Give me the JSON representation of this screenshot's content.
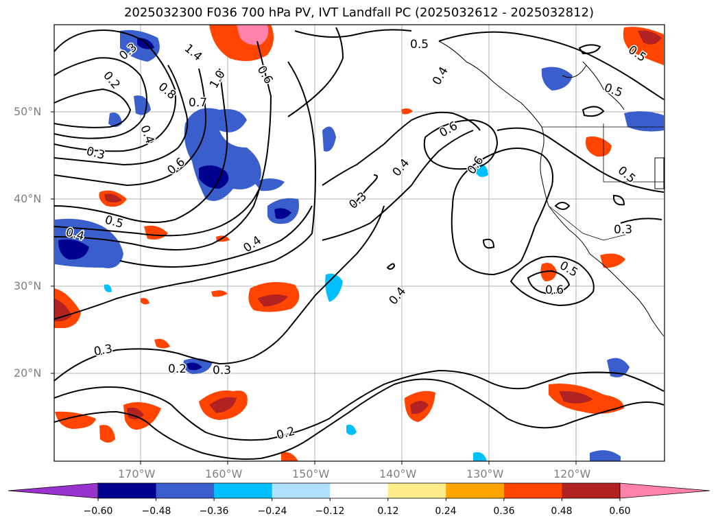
{
  "title": "2025032300 F036 700 hPa PV, IVT Landfall PC (2025032612 - 2025032812)",
  "lat_labels": [
    "50°N",
    "40°N",
    "30°N",
    "20°N"
  ],
  "lon_labels": [
    "170°W",
    "160°W",
    "150°W",
    "140°W",
    "130°W",
    "120°W"
  ],
  "contour_labels": [
    "0.5",
    "0.3",
    "0.2",
    "1.4",
    "0.6",
    "1.0",
    "0.8",
    "0.7",
    "0.4",
    "0.3",
    "0.6",
    "0.6",
    "0.4",
    "0.3",
    "0.6",
    "0.5",
    "0.5",
    "0.4",
    "0.5",
    "0.4",
    "0.3",
    "0.4",
    "0.5",
    "0.6",
    "0.3",
    "0.2",
    "0.3",
    "0.2",
    "0.4",
    "0.5"
  ],
  "colorbar": {
    "ticks": [
      "−0.60",
      "−0.48",
      "−0.36",
      "−0.24",
      "−0.12",
      "0.12",
      "0.24",
      "0.36",
      "0.48",
      "0.60"
    ],
    "colors": [
      "#9a32cd",
      "#000090",
      "#3a5fcd",
      "#00bfff",
      "#b0e2ff",
      "#ffffff",
      "#ffec8b",
      "#ffa500",
      "#ff4500",
      "#b22222",
      "#ff82ab"
    ]
  }
}
